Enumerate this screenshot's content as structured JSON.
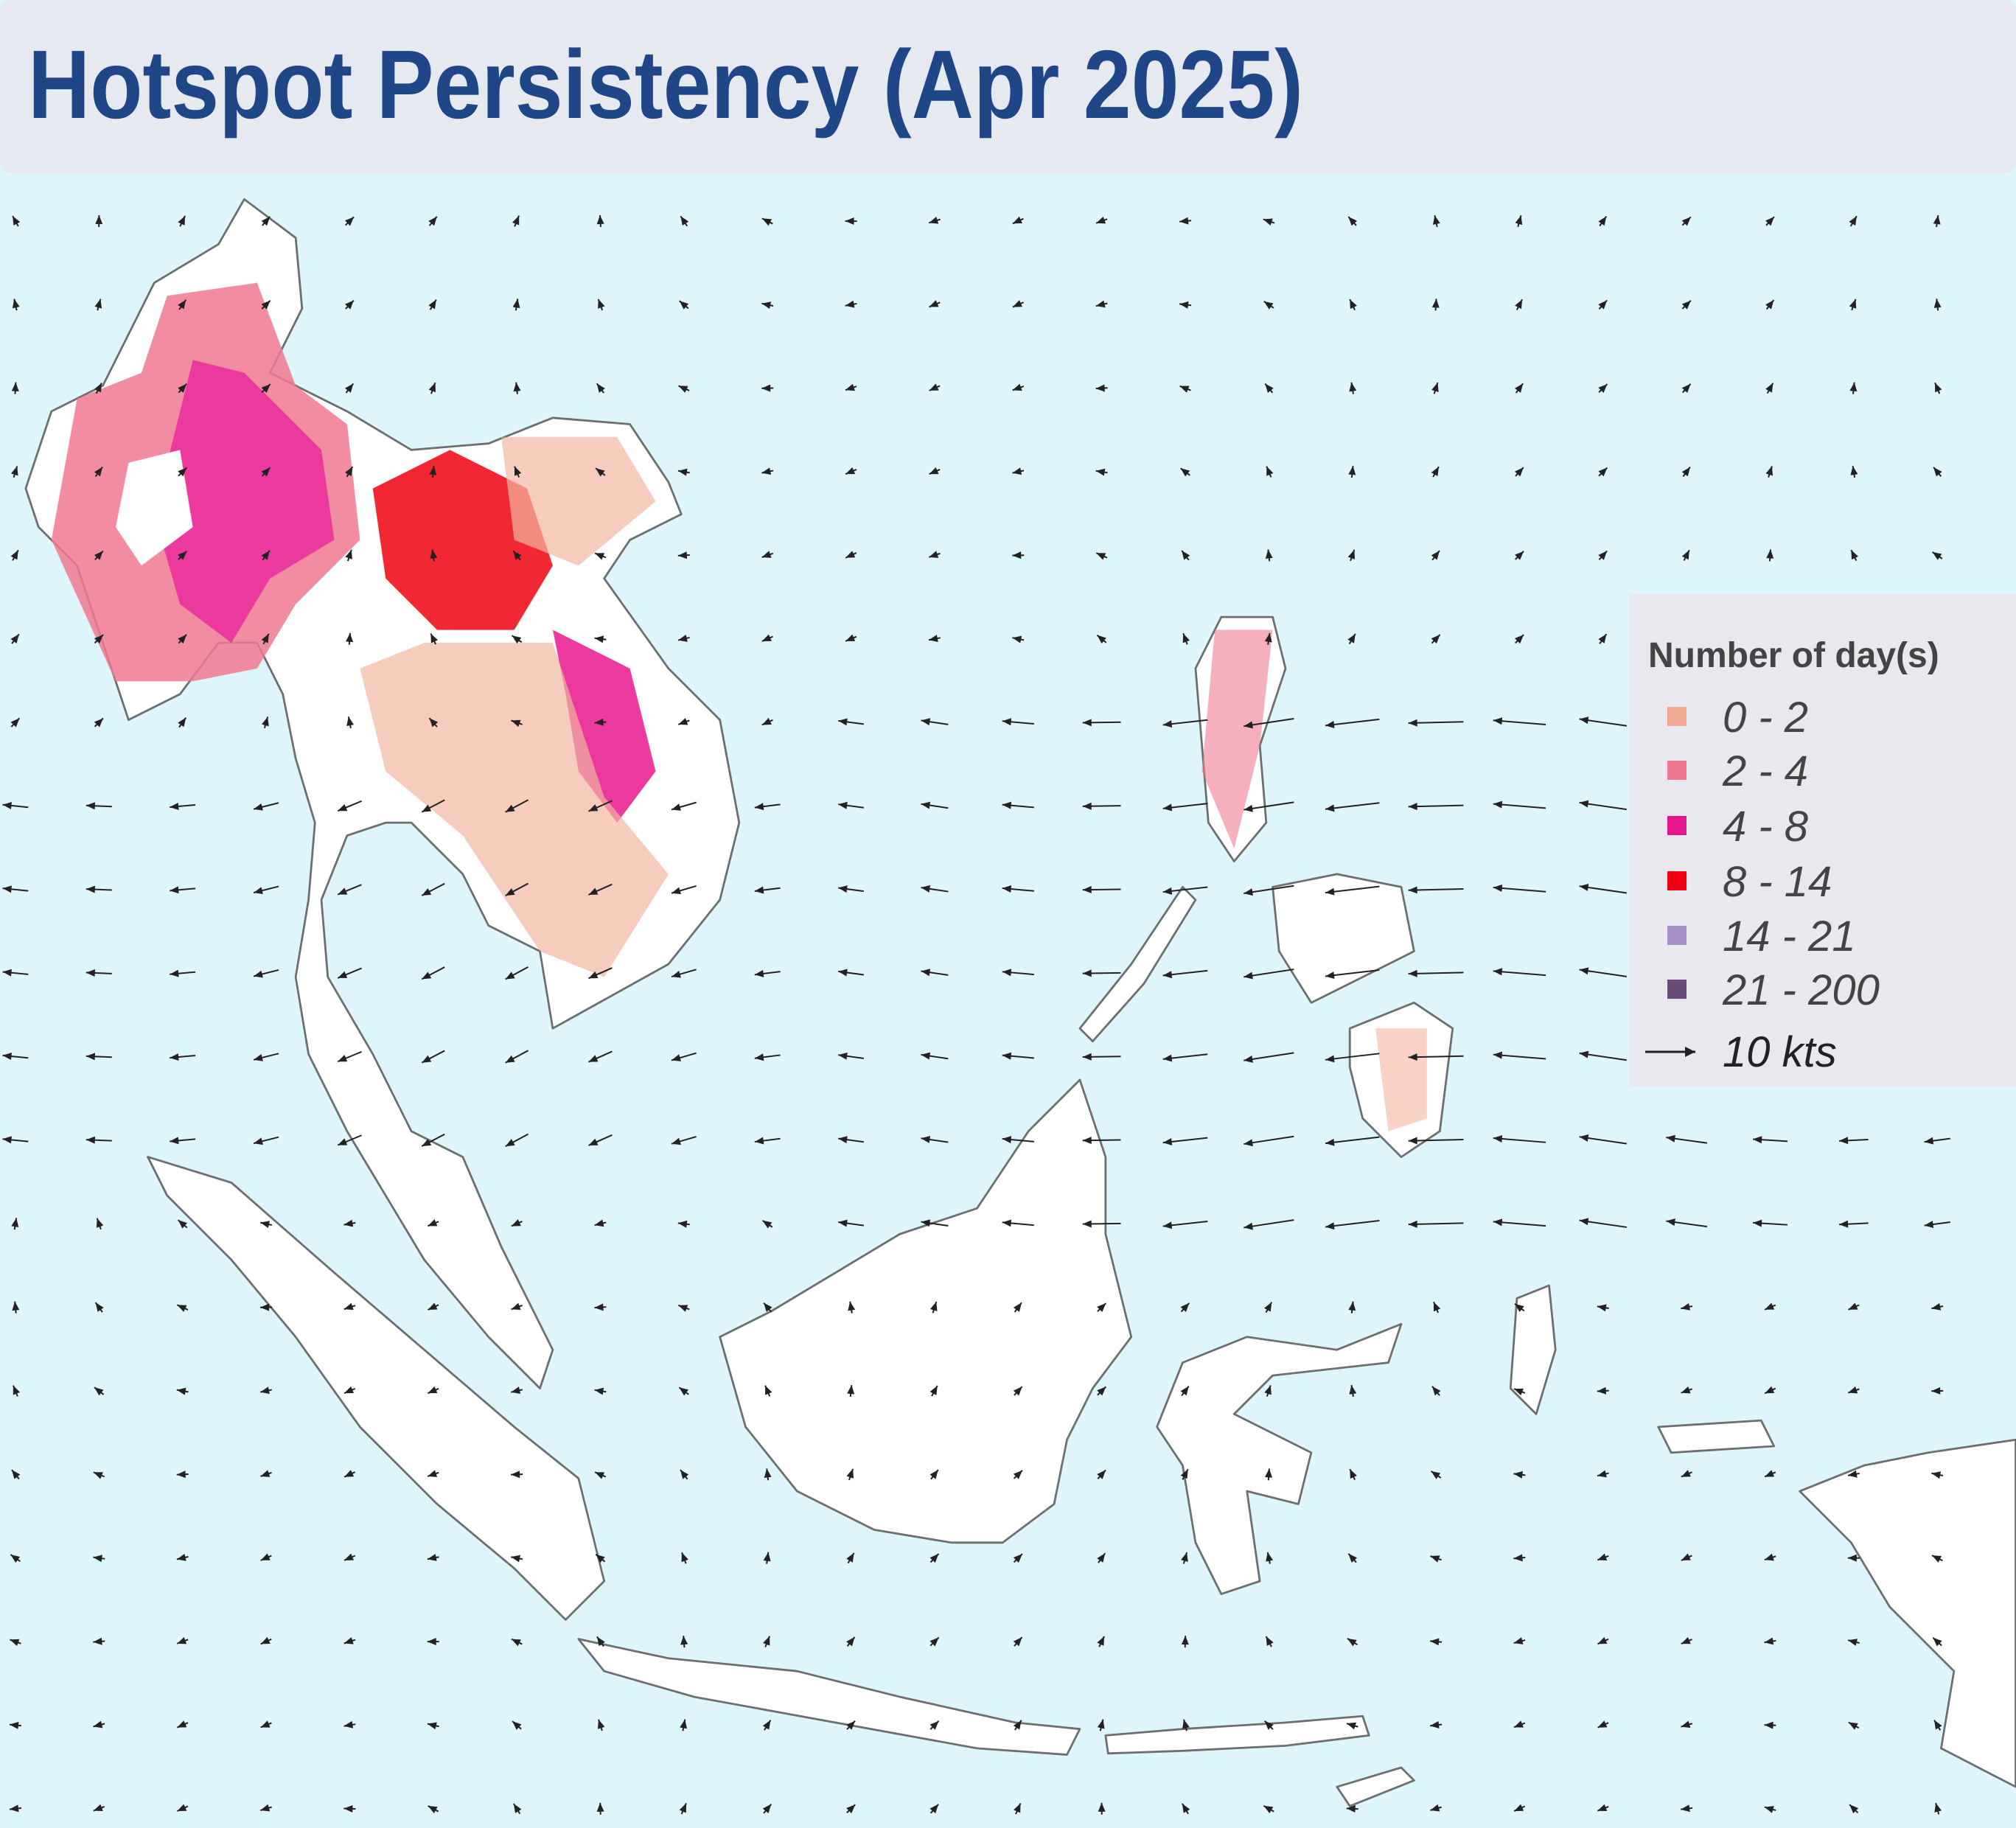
{
  "header": {
    "title": "Hotspot Persistency (Apr 2025)"
  },
  "legend": {
    "title": "Number of day(s)",
    "items": [
      {
        "label": "0 - 2",
        "color": "#f0a890"
      },
      {
        "label": "2 - 4",
        "color": "#f07890"
      },
      {
        "label": "4 - 8",
        "color": "#e8168c"
      },
      {
        "label": "8 - 14",
        "color": "#f00010"
      },
      {
        "label": "14 - 21",
        "color": "#a890c8"
      },
      {
        "label": "21 - 200",
        "color": "#6a4a78"
      }
    ],
    "wind_label": "10 kts"
  }
}
